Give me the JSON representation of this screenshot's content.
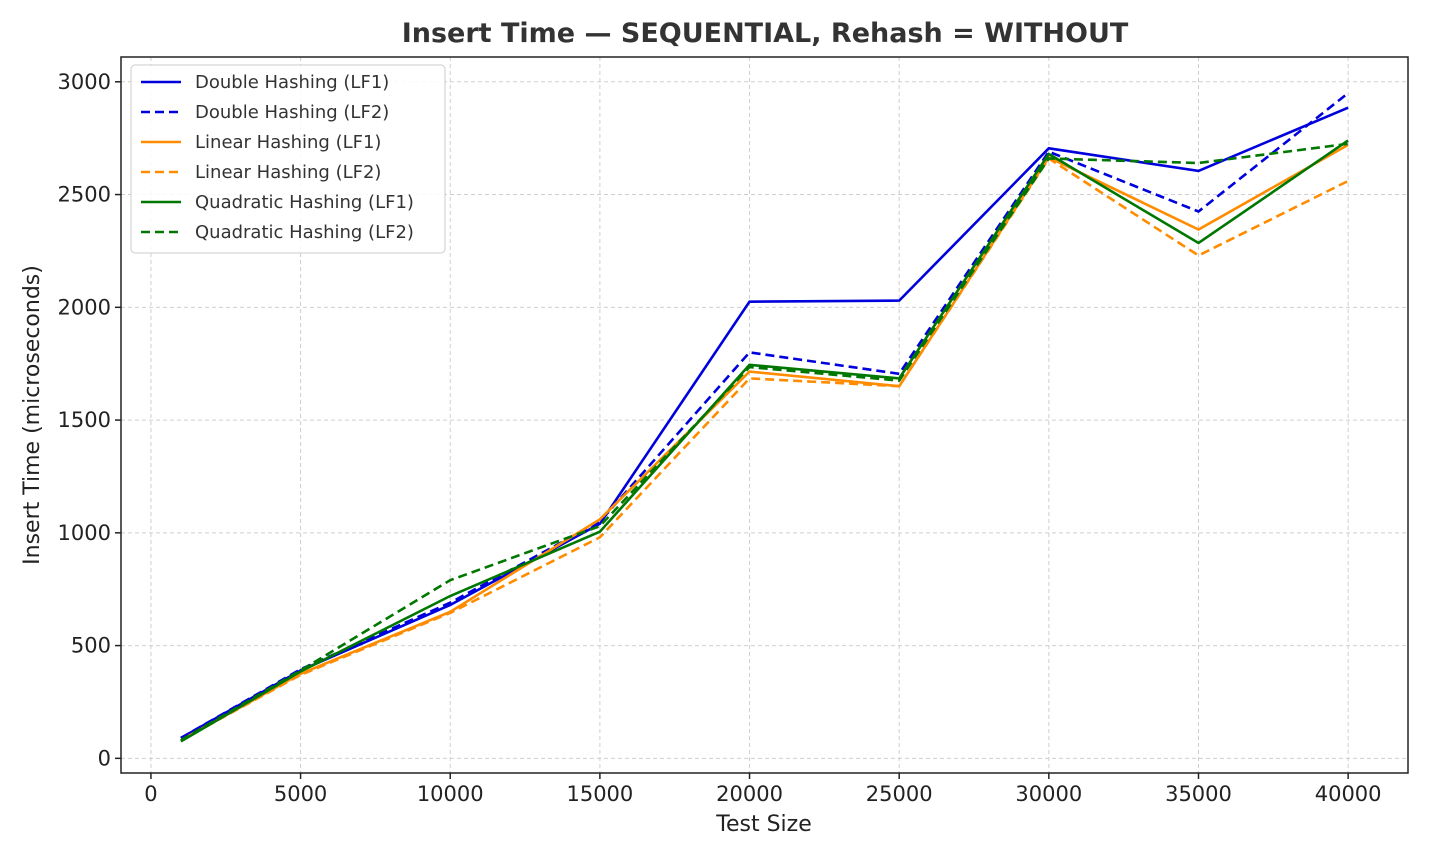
{
  "chart_data": {
    "type": "line",
    "title": "Insert Time — SEQUENTIAL, Rehash = WITHOUT",
    "xlabel": "Test Size",
    "ylabel": "Insert Time (microseconds)",
    "xlim": [
      -1000,
      42000
    ],
    "ylim": [
      -65,
      3110
    ],
    "xticks": [
      0,
      5000,
      10000,
      15000,
      20000,
      25000,
      30000,
      35000,
      40000
    ],
    "yticks": [
      0,
      500,
      1000,
      1500,
      2000,
      2500,
      3000
    ],
    "grid": true,
    "legend_position": "top-left",
    "x": [
      1000,
      5000,
      10000,
      15000,
      20000,
      25000,
      30000,
      35000,
      40000
    ],
    "series": [
      {
        "name": "Double Hashing (LF1)",
        "color": "#0000dd",
        "dash": "solid",
        "values": [
          90,
          390,
          680,
          1040,
          2025,
          2030,
          2705,
          2605,
          2885
        ]
      },
      {
        "name": "Double Hashing (LF2)",
        "color": "#0000dd",
        "dash": "dashed",
        "values": [
          90,
          395,
          690,
          1050,
          1800,
          1705,
          2690,
          2425,
          2950
        ]
      },
      {
        "name": "Linear Hashing (LF1)",
        "color": "#ff8c00",
        "dash": "solid",
        "values": [
          80,
          375,
          650,
          1060,
          1715,
          1650,
          2665,
          2345,
          2720
        ]
      },
      {
        "name": "Linear Hashing (LF2)",
        "color": "#ff8c00",
        "dash": "dashed",
        "values": [
          80,
          370,
          645,
          980,
          1685,
          1650,
          2660,
          2230,
          2560
        ]
      },
      {
        "name": "Quadratic Hashing (LF1)",
        "color": "#007700",
        "dash": "solid",
        "values": [
          75,
          385,
          720,
          1005,
          1745,
          1685,
          2680,
          2285,
          2740
        ]
      },
      {
        "name": "Quadratic Hashing (LF2)",
        "color": "#007700",
        "dash": "dashed",
        "values": [
          80,
          390,
          790,
          1030,
          1735,
          1675,
          2660,
          2640,
          2725
        ]
      }
    ]
  }
}
